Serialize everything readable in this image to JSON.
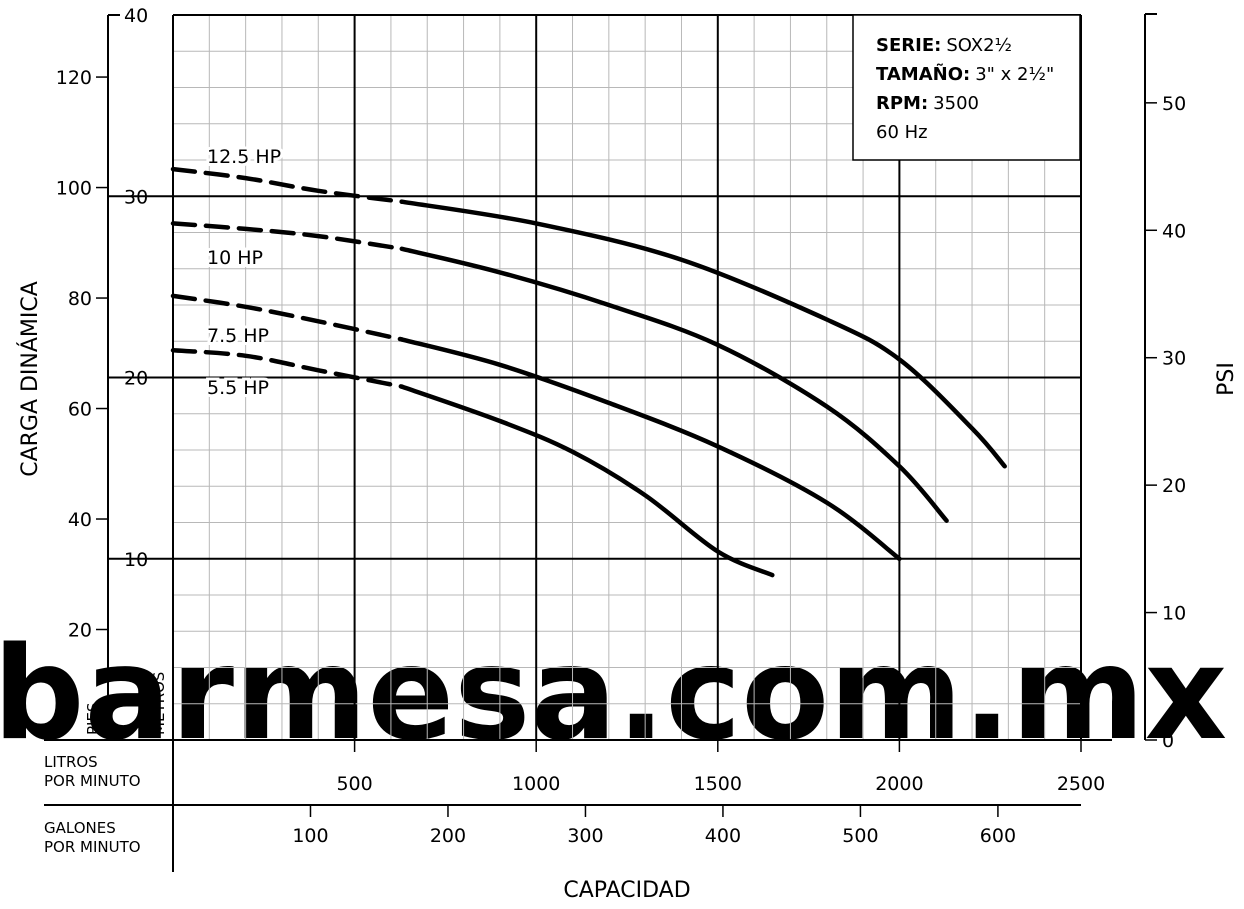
{
  "chart_data": {
    "type": "line",
    "watermark": "barmesa.com.mx",
    "info_box": {
      "serie_label": "SERIE:",
      "serie_value": "SOX2½",
      "tamano_label": "TAMAÑO:",
      "tamano_value": "3\" x 2½\"",
      "rpm_label": "RPM:",
      "rpm_value": "3500",
      "hz": "60 Hz"
    },
    "xlabel": "CAPACIDAD",
    "x_axis_lpm": {
      "label_line1": "LITROS",
      "label_line2": "POR MINUTO",
      "range": [
        0,
        2500
      ],
      "ticks": [
        500,
        1000,
        1500,
        2000,
        2500
      ]
    },
    "x_axis_gpm": {
      "label_line1": "GALONES",
      "label_line2": "POR MINUTO",
      "ticks": [
        100,
        200,
        300,
        400,
        500,
        600
      ]
    },
    "y_axis_pies": {
      "label": "PIES",
      "ticks": [
        20,
        40,
        60,
        80,
        100,
        120
      ]
    },
    "y_axis_metros": {
      "label": "METROS",
      "range": [
        0,
        40
      ],
      "ticks": [
        10,
        20,
        30,
        40
      ]
    },
    "y_axis_psi": {
      "label": "PSI",
      "ticks": [
        0,
        10,
        20,
        30,
        40,
        50
      ]
    },
    "ylabel": "CARGA DINÁMICA",
    "series": [
      {
        "name": "12.5 HP",
        "dashed_until": 630,
        "points": [
          [
            0,
            31.5
          ],
          [
            200,
            31
          ],
          [
            400,
            30.3
          ],
          [
            630,
            29.7
          ],
          [
            1000,
            28.5
          ],
          [
            1400,
            26.5
          ],
          [
            1800,
            23.2
          ],
          [
            2000,
            21
          ],
          [
            2200,
            17.2
          ],
          [
            2290,
            15.1
          ]
        ]
      },
      {
        "name": "10 HP",
        "dashed_until": 630,
        "points": [
          [
            0,
            28.5
          ],
          [
            200,
            28.2
          ],
          [
            400,
            27.8
          ],
          [
            630,
            27.1
          ],
          [
            900,
            25.8
          ],
          [
            1200,
            24
          ],
          [
            1500,
            21.8
          ],
          [
            1800,
            18.4
          ],
          [
            2000,
            15.1
          ],
          [
            2130,
            12.1
          ]
        ]
      },
      {
        "name": "7.5 HP",
        "dashed_until": 630,
        "points": [
          [
            0,
            24.5
          ],
          [
            200,
            23.9
          ],
          [
            400,
            23.1
          ],
          [
            630,
            22.1
          ],
          [
            900,
            20.7
          ],
          [
            1200,
            18.6
          ],
          [
            1500,
            16.2
          ],
          [
            1800,
            13.1
          ],
          [
            2000,
            10
          ]
        ]
      },
      {
        "name": "5.5 HP",
        "dashed_until": 630,
        "points": [
          [
            0,
            21.5
          ],
          [
            200,
            21.2
          ],
          [
            400,
            20.4
          ],
          [
            630,
            19.5
          ],
          [
            900,
            17.6
          ],
          [
            1100,
            15.9
          ],
          [
            1300,
            13.5
          ],
          [
            1500,
            10.4
          ],
          [
            1650,
            9.1
          ]
        ]
      }
    ]
  }
}
